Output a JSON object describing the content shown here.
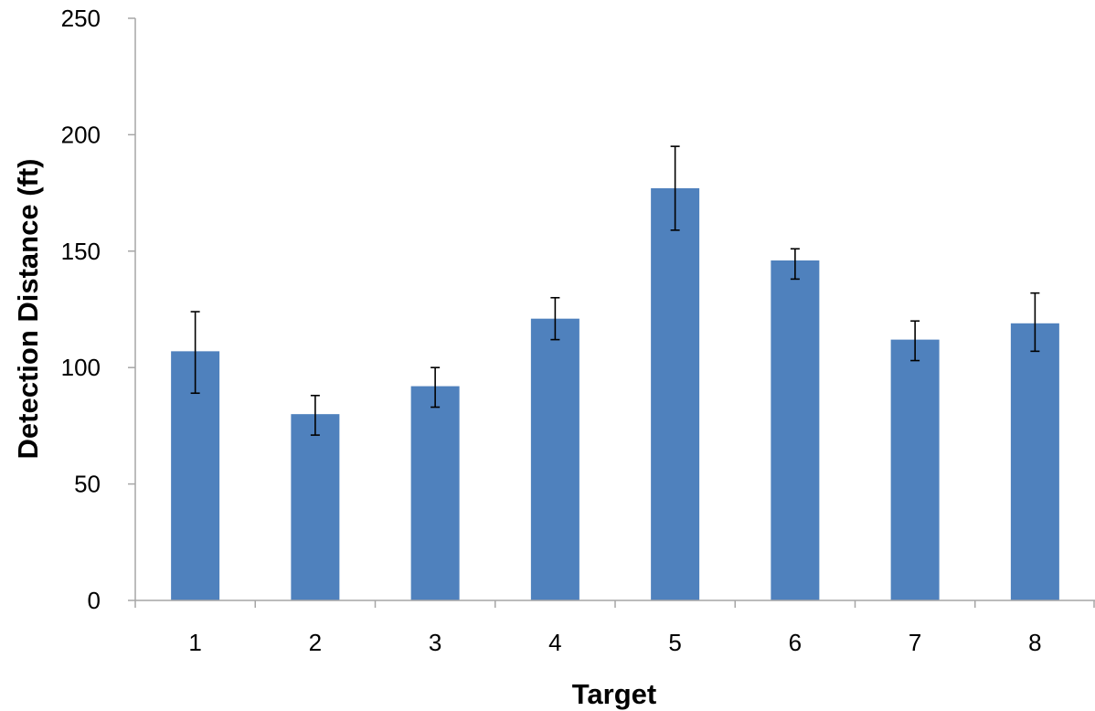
{
  "chart_data": {
    "type": "bar",
    "title": "",
    "xlabel": "Target",
    "ylabel": "Detection Distance (ft)",
    "categories": [
      "1",
      "2",
      "3",
      "4",
      "5",
      "6",
      "7",
      "8"
    ],
    "values": [
      107,
      80,
      92,
      121,
      177,
      146,
      112,
      119
    ],
    "error_low": [
      89,
      71,
      83,
      112,
      159,
      138,
      103,
      107
    ],
    "error_high": [
      124,
      88,
      100,
      130,
      195,
      151,
      120,
      132
    ],
    "ylim": [
      0,
      250
    ],
    "yticks": [
      "0",
      "50",
      "100",
      "150",
      "200",
      "250"
    ],
    "grid": false,
    "legend": "none",
    "bar_color": "#4F81BD",
    "axis_color": "#A6A6A6",
    "error_bar_color": "#000000"
  }
}
